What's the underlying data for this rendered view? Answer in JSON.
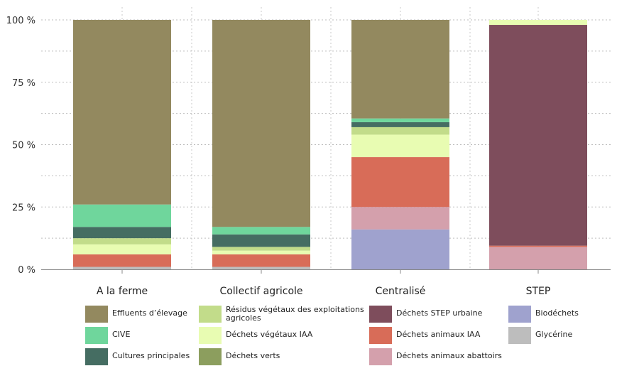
{
  "chart_data": {
    "type": "bar",
    "stacked": true,
    "categories": [
      "A la ferme",
      "Collectif agricole",
      "Centralisé",
      "STEP"
    ],
    "ylim": [
      0,
      100
    ],
    "yticks": [
      "0 %",
      "25 %",
      "50 %",
      "75 %",
      "100 %"
    ],
    "ytick_values": [
      0,
      25,
      50,
      75,
      100
    ],
    "grid": "dotted",
    "legend_position": "bottom",
    "series": [
      {
        "name": "Glycérine",
        "color": "#bdbdbd",
        "values": [
          1,
          1,
          0,
          0
        ]
      },
      {
        "name": "Biodéchets",
        "color": "#9fa2ce",
        "values": [
          0,
          0,
          16,
          0
        ]
      },
      {
        "name": "Déchets animaux abattoirs",
        "color": "#d4a0ac",
        "values": [
          0,
          0,
          9,
          9
        ]
      },
      {
        "name": "Déchets animaux IAA",
        "color": "#d86c58",
        "values": [
          5,
          5,
          20,
          0.5
        ]
      },
      {
        "name": "Déchets STEP urbaine",
        "color": "#7e4d5c",
        "values": [
          0,
          0,
          0,
          88.5
        ]
      },
      {
        "name": "Déchets verts",
        "color": "#8c9e5e",
        "values": [
          0,
          0,
          0,
          0
        ]
      },
      {
        "name": "Déchets végétaux IAA",
        "color": "#e8fcb2",
        "values": [
          4,
          1.5,
          9,
          2
        ]
      },
      {
        "name": "Résidus végétaux des exploitations agricoles",
        "color": "#c2dc8a",
        "values": [
          2.5,
          1.5,
          3,
          0
        ]
      },
      {
        "name": "Cultures principales",
        "color": "#456d62",
        "values": [
          4.5,
          5,
          2,
          0
        ]
      },
      {
        "name": "CIVE",
        "color": "#6fd69c",
        "values": [
          9,
          3,
          1.5,
          0
        ]
      },
      {
        "name": "Effluents d'élevage",
        "color": "#93895f",
        "values": [
          74,
          83,
          39.5,
          0
        ]
      }
    ],
    "legend": [
      {
        "label": "Effluents d’élevage",
        "color": "#93895f"
      },
      {
        "label": "CIVE",
        "color": "#6fd69c"
      },
      {
        "label": "Cultures principales",
        "color": "#456d62"
      },
      {
        "label": "Résidus végétaux des exploitations agricoles",
        "color": "#c2dc8a"
      },
      {
        "label": "Déchets végétaux IAA",
        "color": "#e8fcb2"
      },
      {
        "label": "Déchets verts",
        "color": "#8c9e5e"
      },
      {
        "label": "Déchets STEP urbaine",
        "color": "#7e4d5c"
      },
      {
        "label": "Déchets animaux IAA",
        "color": "#d86c58"
      },
      {
        "label": "Déchets animaux abattoirs",
        "color": "#d4a0ac"
      },
      {
        "label": "Biodéchets",
        "color": "#9fa2ce"
      },
      {
        "label": "Glycérine",
        "color": "#bdbdbd"
      }
    ]
  }
}
